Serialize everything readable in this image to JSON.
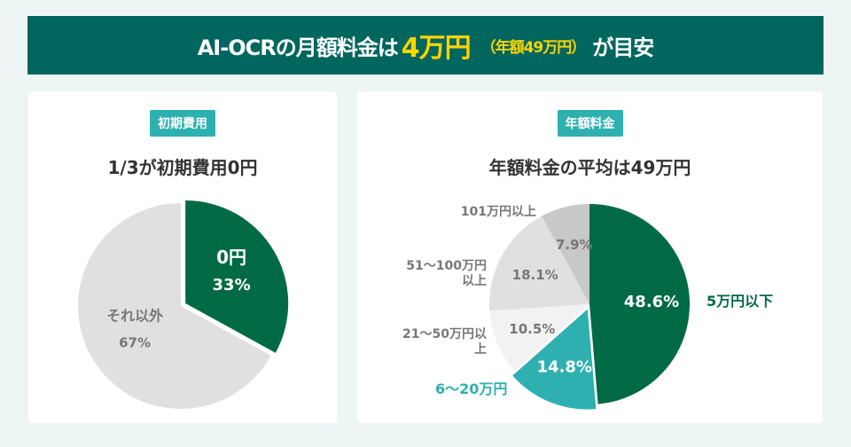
{
  "banner": {
    "pre": "AI-OCRの月額料金は",
    "highlight": "4万円",
    "sub": "（年額49万円）",
    "post": "が目安"
  },
  "left": {
    "tag": "初期費用",
    "title": "1/3が初期費用0円"
  },
  "right": {
    "tag": "年額料金",
    "title": "年額料金の平均は49万円"
  },
  "chart_data": [
    {
      "type": "pie",
      "title": "1/3が初期費用0円",
      "slices": [
        {
          "label": "0円",
          "value": 33,
          "display": "33%",
          "color": "#006a45",
          "text": "#ffffff",
          "exploded": true
        },
        {
          "label": "それ以外",
          "value": 67,
          "display": "67%",
          "color": "#e0e0e0",
          "text": "#777777"
        }
      ]
    },
    {
      "type": "pie",
      "title": "年額料金の平均は49万円",
      "slices": [
        {
          "label": "5万円以下",
          "value": 48.6,
          "display": "48.6%",
          "color": "#006a45",
          "text": "#ffffff",
          "labelColor": "#006a45"
        },
        {
          "label": "6〜20万円",
          "value": 14.8,
          "display": "14.8%",
          "color": "#2fb0b0",
          "text": "#ffffff",
          "labelColor": "#2fb0b0",
          "exploded": true
        },
        {
          "label": "21〜50万円以上",
          "value": 10.5,
          "display": "10.5%",
          "color": "#f2f2f2",
          "text": "#777777"
        },
        {
          "label": "51〜100万円以上",
          "value": 18.1,
          "display": "18.1%",
          "color": "#e0e0e0",
          "text": "#777777"
        },
        {
          "label": "101万円以上",
          "value": 7.9,
          "display": "7.9%",
          "color": "#c8c8c8",
          "text": "#777777"
        }
      ]
    }
  ]
}
